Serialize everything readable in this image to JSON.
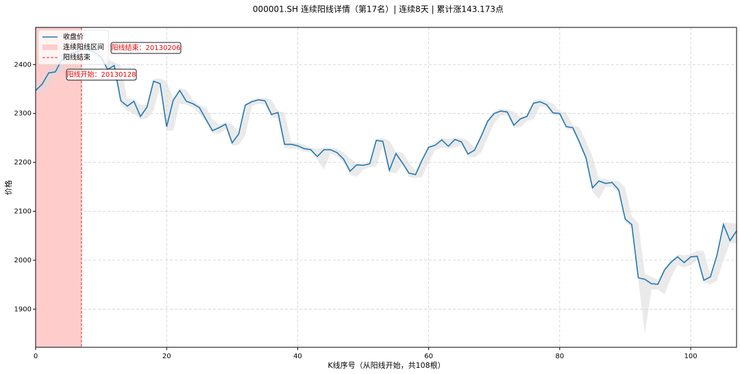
{
  "chart_data": {
    "type": "line",
    "title": "000001.SH 连续阳线详情（第17名）| 连续8天 | 累计涨143.173点",
    "x_label": "K线序号（从阳线开始，共108根）",
    "y_label": "价格",
    "x": [
      0,
      1,
      2,
      3,
      4,
      5,
      6,
      7,
      8,
      9,
      10,
      11,
      12,
      13,
      14,
      15,
      16,
      17,
      18,
      19,
      20,
      21,
      22,
      23,
      24,
      25,
      26,
      27,
      28,
      29,
      30,
      31,
      32,
      33,
      34,
      35,
      36,
      37,
      38,
      39,
      40,
      41,
      42,
      43,
      44,
      45,
      46,
      47,
      48,
      49,
      50,
      51,
      52,
      53,
      54,
      55,
      56,
      57,
      58,
      59,
      60,
      61,
      62,
      63,
      64,
      65,
      66,
      67,
      68,
      69,
      70,
      71,
      72,
      73,
      74,
      75,
      76,
      77,
      78,
      79,
      80,
      81,
      82,
      83,
      84,
      85,
      86,
      87,
      88,
      89,
      90,
      91,
      92,
      93,
      94,
      95,
      96,
      97,
      98,
      99,
      100,
      101,
      102,
      103,
      104,
      105,
      106,
      107
    ],
    "series": [
      {
        "name": "收盘价",
        "color": "#1f77b4",
        "values": [
          2347,
          2360,
          2383,
          2385,
          2410,
          2420,
          2425,
          2430,
          2430,
          2425,
          2415,
          2390,
          2398,
          2326,
          2315,
          2325,
          2294,
          2313,
          2366,
          2361,
          2273,
          2327,
          2347,
          2325,
          2320,
          2312,
          2288,
          2265,
          2271,
          2278,
          2240,
          2258,
          2317,
          2324,
          2328,
          2326,
          2298,
          2302,
          2237,
          2237,
          2234,
          2228,
          2226,
          2212,
          2226,
          2226,
          2220,
          2207,
          2182,
          2195,
          2194,
          2197,
          2245,
          2243,
          2184,
          2218,
          2199,
          2178,
          2175,
          2205,
          2231,
          2235,
          2246,
          2233,
          2247,
          2242,
          2217,
          2225,
          2253,
          2284,
          2300,
          2305,
          2303,
          2276,
          2289,
          2294,
          2321,
          2324,
          2318,
          2301,
          2300,
          2273,
          2271,
          2242,
          2210,
          2148,
          2162,
          2157,
          2159,
          2144,
          2084,
          2073,
          1964,
          1961,
          1952,
          1951,
          1980,
          1996,
          2007,
          1995,
          2007,
          2008,
          1959,
          1966,
          2010,
          2073,
          2040,
          2060
        ]
      }
    ],
    "band": {
      "color": "#d9d9d9",
      "high": [
        2355,
        2368,
        2390,
        2395,
        2418,
        2428,
        2432,
        2438,
        2438,
        2434,
        2428,
        2410,
        2405,
        2398,
        2330,
        2330,
        2318,
        2318,
        2370,
        2372,
        2365,
        2332,
        2352,
        2348,
        2328,
        2318,
        2312,
        2288,
        2278,
        2282,
        2278,
        2262,
        2320,
        2328,
        2332,
        2332,
        2328,
        2305,
        2302,
        2242,
        2240,
        2236,
        2230,
        2228,
        2230,
        2230,
        2228,
        2220,
        2208,
        2198,
        2198,
        2200,
        2248,
        2250,
        2244,
        2222,
        2220,
        2200,
        2182,
        2208,
        2234,
        2240,
        2250,
        2248,
        2250,
        2250,
        2244,
        2230,
        2256,
        2288,
        2304,
        2310,
        2308,
        2304,
        2292,
        2298,
        2326,
        2330,
        2326,
        2320,
        2304,
        2302,
        2276,
        2272,
        2244,
        2212,
        2166,
        2166,
        2162,
        2162,
        2148,
        2090,
        2076,
        1972,
        1966,
        1960,
        1984,
        2000,
        2012,
        2010,
        2012,
        2020,
        2018,
        1970,
        2012,
        2078,
        2076,
        2075
      ],
      "low": [
        2340,
        2345,
        2355,
        2378,
        2385,
        2405,
        2415,
        2420,
        2422,
        2418,
        2408,
        2385,
        2385,
        2318,
        2305,
        2300,
        2288,
        2290,
        2306,
        2355,
        2265,
        2265,
        2320,
        2318,
        2312,
        2300,
        2282,
        2260,
        2258,
        2268,
        2234,
        2236,
        2255,
        2315,
        2320,
        2318,
        2292,
        2290,
        2230,
        2228,
        2228,
        2222,
        2220,
        2205,
        2185,
        2218,
        2212,
        2200,
        2175,
        2170,
        2185,
        2190,
        2192,
        2235,
        2180,
        2178,
        2195,
        2170,
        2168,
        2170,
        2200,
        2225,
        2230,
        2228,
        2230,
        2235,
        2212,
        2210,
        2220,
        2250,
        2280,
        2295,
        2298,
        2270,
        2272,
        2285,
        2288,
        2315,
        2312,
        2296,
        2295,
        2268,
        2265,
        2235,
        2205,
        2140,
        2125,
        2150,
        2150,
        2138,
        2080,
        2065,
        1960,
        1850,
        1940,
        1940,
        1930,
        1965,
        1990,
        1985,
        1990,
        2000,
        1955,
        1950,
        1958,
        2000,
        2035,
        2035
      ]
    },
    "span": {
      "name": "连续阳线区间",
      "x": [
        0,
        7
      ],
      "color": "#ffcccc"
    },
    "vline": {
      "name": "阳线结束",
      "x": 7,
      "color": "#d62728"
    },
    "annotations": [
      "阳线开始：20130128",
      "阳线结束：20130206"
    ],
    "xlim": [
      0,
      107
    ],
    "ylim": [
      1822,
      2476
    ],
    "xticks": [
      0,
      20,
      40,
      60,
      80,
      100
    ],
    "yticks": [
      1900,
      2000,
      2100,
      2200,
      2300,
      2400
    ],
    "grid": true,
    "legend": "upper left"
  }
}
